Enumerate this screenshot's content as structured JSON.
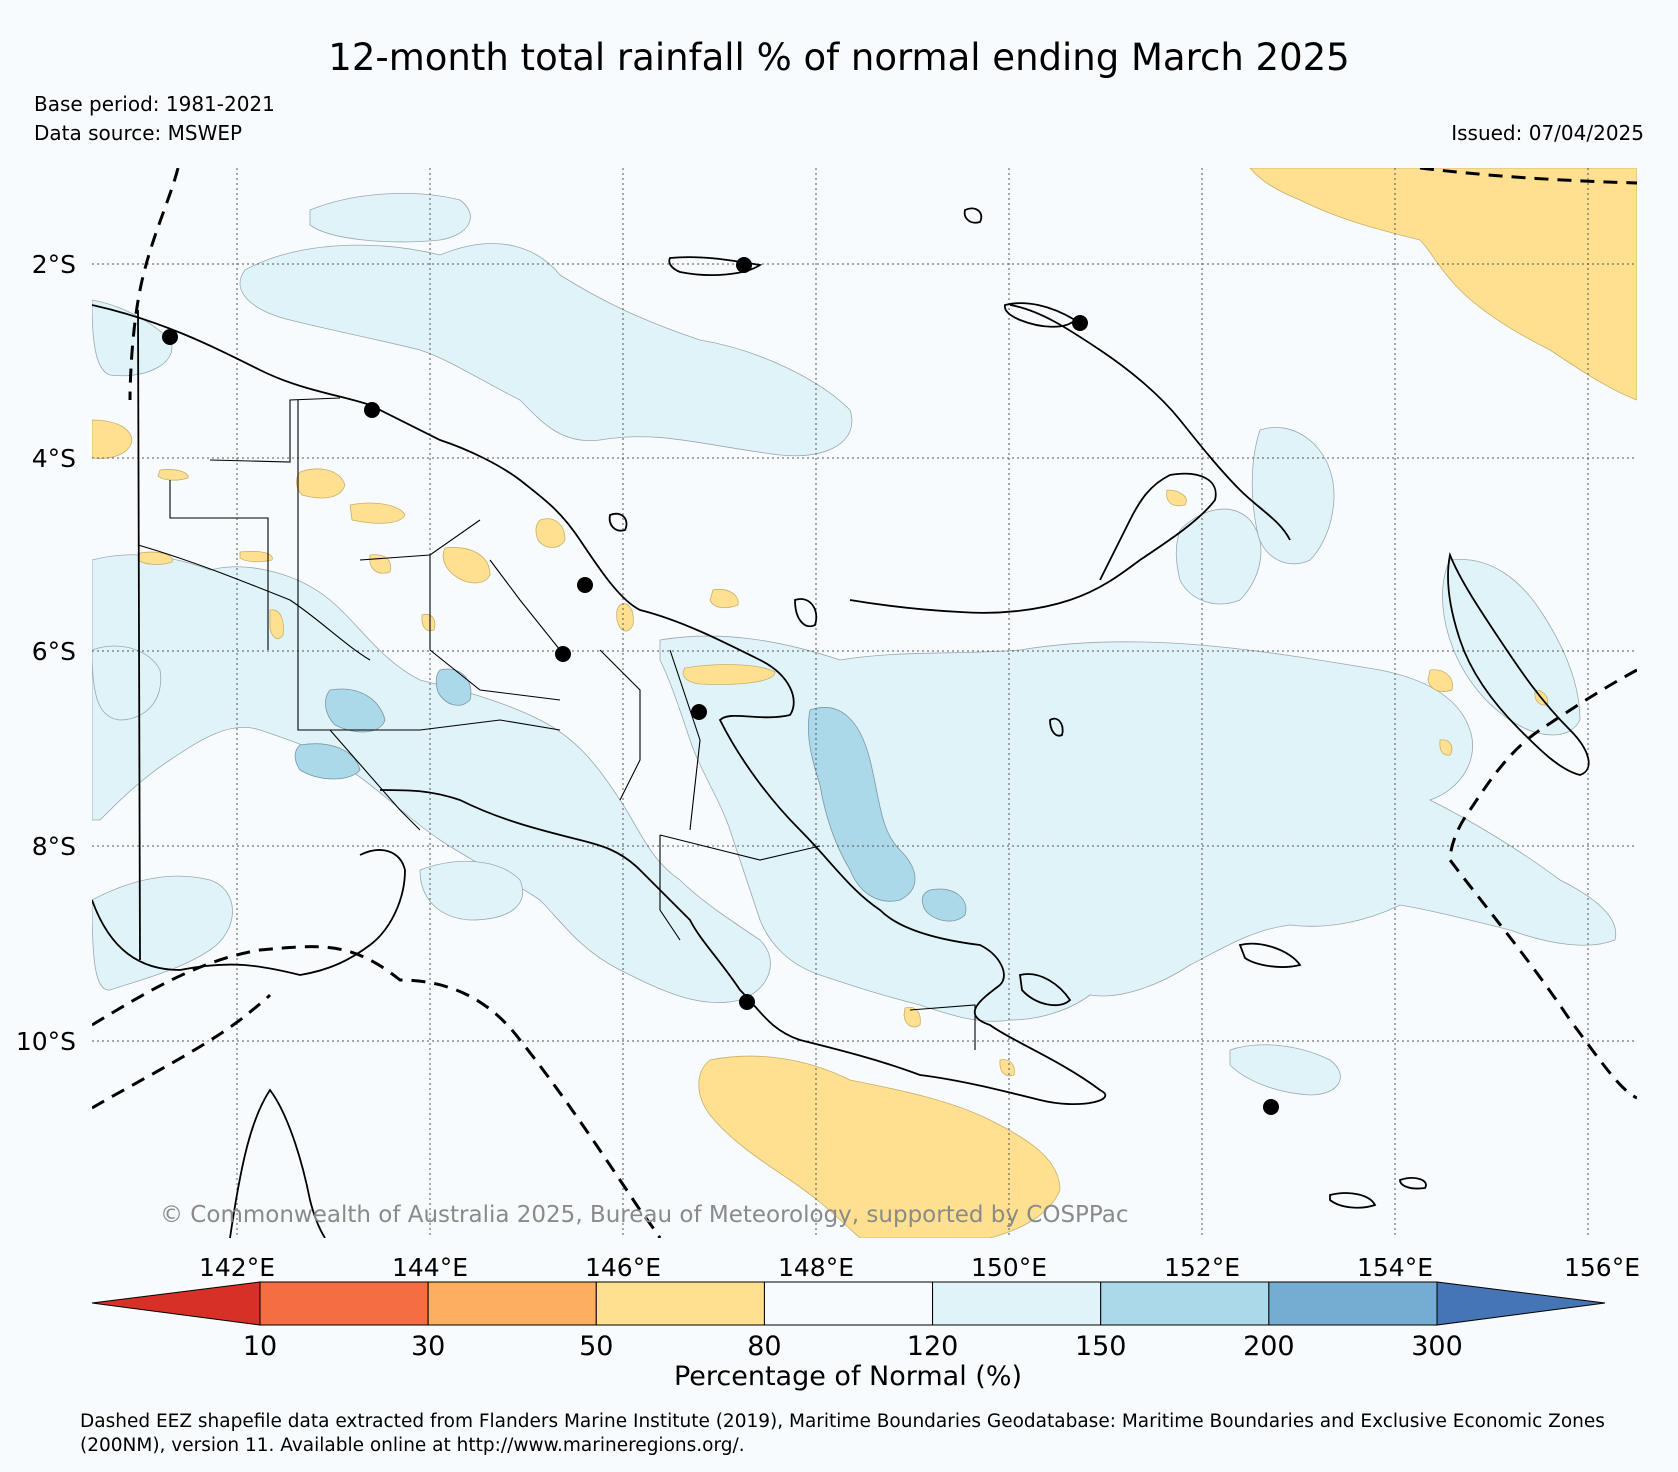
{
  "header": {
    "title": "12-month total rainfall % of normal ending March 2025",
    "base_period": "Base period: 1981-2021",
    "data_source": "Data source: MSWEP",
    "issued": "Issued: 07/04/2025"
  },
  "map": {
    "lat_ticks": [
      "2°S",
      "4°S",
      "6°S",
      "8°S",
      "10°S"
    ],
    "lon_ticks": [
      "142°E",
      "144°E",
      "146°E",
      "148°E",
      "150°E",
      "152°E",
      "154°E",
      "156°E"
    ],
    "copyright": "© Commonwealth of Australia 2025, Bureau of Meteorology, supported by COSPPac"
  },
  "legend": {
    "title": "Percentage of Normal (%)",
    "boundaries": [
      "10",
      "30",
      "50",
      "80",
      "120",
      "150",
      "200",
      "300"
    ],
    "colors": [
      "#d73027",
      "#f46d43",
      "#fdae61",
      "#fee090",
      "#f7fbfd",
      "#e0f3f8",
      "#abd9e9",
      "#74add1",
      "#4575b4"
    ]
  },
  "colors": {
    "below_normal": "#fee090",
    "normal": "#f7fbfd",
    "above_normal": "#e0f3f8",
    "well_above_normal": "#abd9e9",
    "coast": "#000000"
  },
  "footer": {
    "note": "Dashed EEZ shapefile data extracted from Flanders Marine Institute (2019), Maritime Boundaries Geodatabase: Maritime Boundaries and Exclusive Economic Zones (200NM), version 11. Available online at http://www.marineregions.org/."
  }
}
